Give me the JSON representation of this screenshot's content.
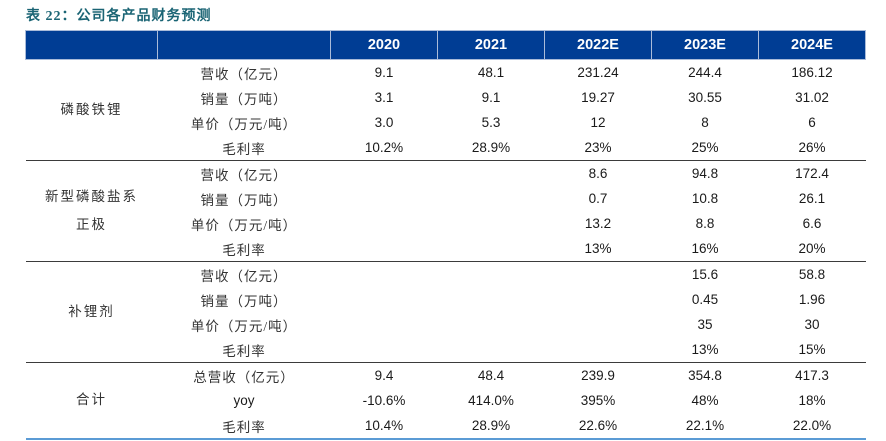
{
  "title": "表 22：公司各产品财务预测",
  "colors": {
    "title_text": "#1A6474",
    "header_bg": "#003D94",
    "header_text": "#FFFFFF",
    "group_separator": "#3B3B3B",
    "bottom_border": "#5B9BD5"
  },
  "table": {
    "year_headers": [
      "2020",
      "2021",
      "2022E",
      "2023E",
      "2024E"
    ],
    "groups": [
      {
        "product": "磷酸铁锂",
        "rows": [
          {
            "metric": "营收（亿元）",
            "values": [
              "9.1",
              "48.1",
              "231.24",
              "244.4",
              "186.12"
            ]
          },
          {
            "metric": "销量（万吨）",
            "values": [
              "3.1",
              "9.1",
              "19.27",
              "30.55",
              "31.02"
            ]
          },
          {
            "metric": "单价（万元/吨）",
            "values": [
              "3.0",
              "5.3",
              "12",
              "8",
              "6"
            ]
          },
          {
            "metric": "毛利率",
            "values": [
              "10.2%",
              "28.9%",
              "23%",
              "25%",
              "26%"
            ]
          }
        ]
      },
      {
        "product": "新型磷酸盐系正极",
        "rows": [
          {
            "metric": "营收（亿元）",
            "values": [
              "",
              "",
              "8.6",
              "94.8",
              "172.4"
            ]
          },
          {
            "metric": "销量（万吨）",
            "values": [
              "",
              "",
              "0.7",
              "10.8",
              "26.1"
            ]
          },
          {
            "metric": "单价（万元/吨）",
            "values": [
              "",
              "",
              "13.2",
              "8.8",
              "6.6"
            ]
          },
          {
            "metric": "毛利率",
            "values": [
              "",
              "",
              "13%",
              "16%",
              "20%"
            ]
          }
        ]
      },
      {
        "product": "补锂剂",
        "rows": [
          {
            "metric": "营收（亿元）",
            "values": [
              "",
              "",
              "",
              "15.6",
              "58.8"
            ]
          },
          {
            "metric": "销量（万吨）",
            "values": [
              "",
              "",
              "",
              "0.45",
              "1.96"
            ]
          },
          {
            "metric": "单价（万元/吨）",
            "values": [
              "",
              "",
              "",
              "35",
              "30"
            ]
          },
          {
            "metric": "毛利率",
            "values": [
              "",
              "",
              "",
              "13%",
              "15%"
            ]
          }
        ]
      },
      {
        "product": "合计",
        "rows": [
          {
            "metric": "总营收（亿元）",
            "values": [
              "9.4",
              "48.4",
              "239.9",
              "354.8",
              "417.3"
            ]
          },
          {
            "metric": "yoy",
            "values": [
              "-10.6%",
              "414.0%",
              "395%",
              "48%",
              "18%"
            ]
          },
          {
            "metric": "毛利率",
            "values": [
              "10.4%",
              "28.9%",
              "22.6%",
              "22.1%",
              "22.0%"
            ]
          }
        ]
      }
    ]
  }
}
